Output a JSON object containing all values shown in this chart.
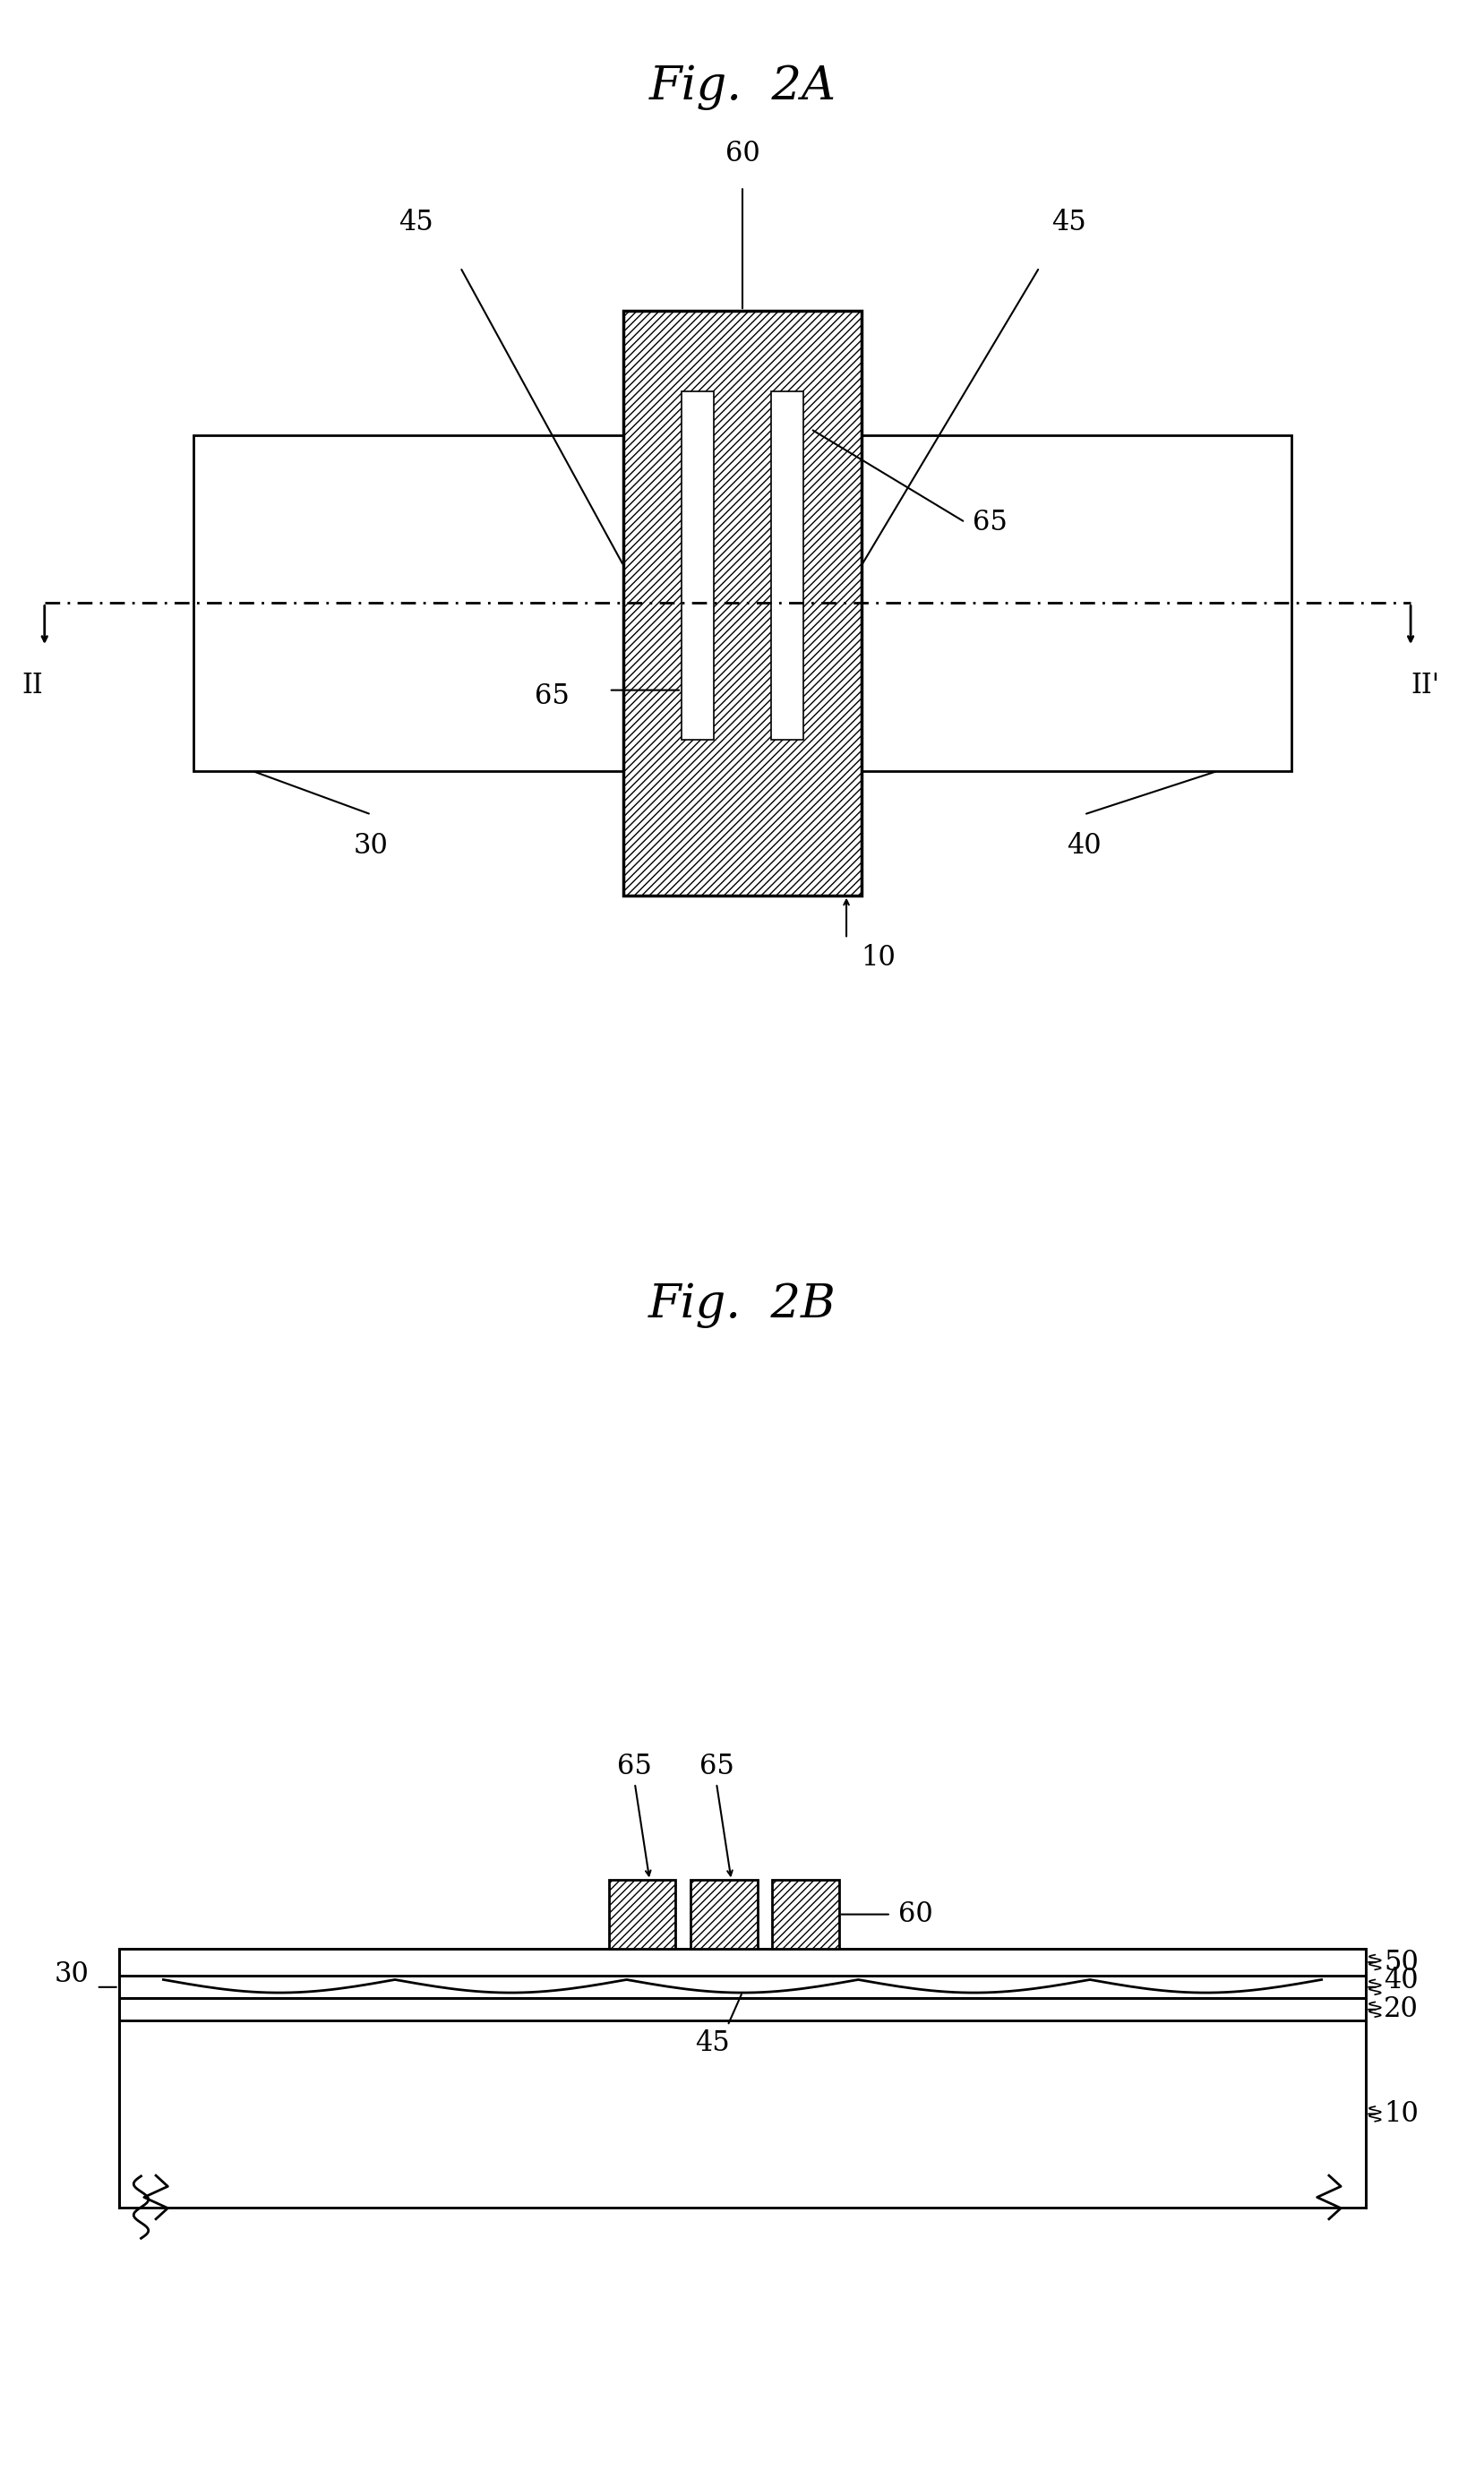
{
  "fig_title_A": "Fig.  2A",
  "fig_title_B": "Fig.  2B",
  "bg_color": "#ffffff",
  "line_color": "#000000",
  "hatch_color": "#000000",
  "label_fontsize": 22,
  "title_fontsize": 38,
  "annotation_fontsize": 22
}
